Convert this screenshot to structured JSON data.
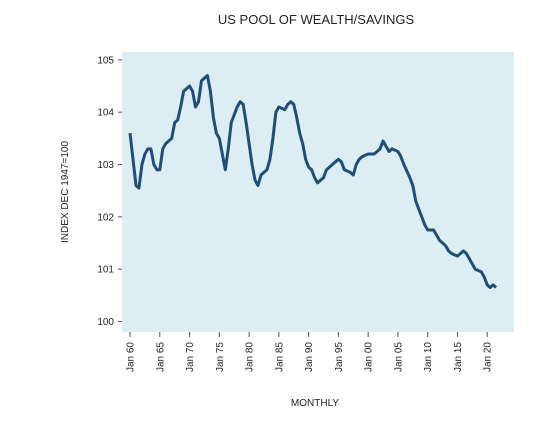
{
  "chart_data": {
    "type": "line",
    "title": "US POOL OF WEALTH/SAVINGS",
    "x_label": "MONTHLY",
    "y_label": "INDEX DEC 1947=100",
    "x": [
      1960.0,
      1960.5,
      1961.0,
      1961.5,
      1962.0,
      1962.5,
      1963.0,
      1963.5,
      1964.0,
      1964.5,
      1965.0,
      1965.5,
      1966.0,
      1967.0,
      1967.5,
      1968.0,
      1968.5,
      1969.0,
      1970.0,
      1970.5,
      1971.0,
      1971.5,
      1972.0,
      1973.0,
      1973.5,
      1974.0,
      1974.5,
      1975.0,
      1975.5,
      1976.0,
      1976.5,
      1977.0,
      1978.0,
      1978.5,
      1979.0,
      1979.5,
      1980.0,
      1980.5,
      1981.0,
      1981.5,
      1982.0,
      1983.0,
      1983.5,
      1984.0,
      1984.5,
      1985.0,
      1986.0,
      1986.5,
      1987.0,
      1987.5,
      1988.0,
      1988.5,
      1989.0,
      1989.5,
      1990.0,
      1990.5,
      1991.0,
      1991.5,
      1992.0,
      1992.5,
      1993.0,
      1994.0,
      1995.0,
      1995.5,
      1996.0,
      1997.0,
      1997.5,
      1998.0,
      1998.5,
      1999.0,
      2000.0,
      2001.0,
      2001.5,
      2002.0,
      2002.5,
      2003.0,
      2003.5,
      2004.0,
      2005.0,
      2005.5,
      2006.0,
      2007.0,
      2007.5,
      2008.0,
      2008.5,
      2009.0,
      2009.5,
      2010.0,
      2011.0,
      2011.5,
      2012.0,
      2013.0,
      2013.5,
      2014.0,
      2015.0,
      2015.5,
      2016.0,
      2016.5,
      2017.0,
      2017.5,
      2018.0,
      2019.0,
      2019.5,
      2020.0,
      2020.5,
      2021.0,
      2021.5
    ],
    "series": [
      {
        "color": "#1f4e79",
        "values": [
          103.6,
          103.1,
          102.6,
          102.55,
          103.0,
          103.2,
          103.3,
          103.3,
          103.0,
          102.9,
          102.9,
          103.3,
          103.4,
          103.5,
          103.8,
          103.85,
          104.1,
          104.4,
          104.5,
          104.4,
          104.1,
          104.2,
          104.6,
          104.7,
          104.4,
          103.9,
          103.6,
          103.5,
          103.2,
          102.9,
          103.3,
          103.8,
          104.1,
          104.2,
          104.15,
          103.8,
          103.4,
          103.0,
          102.7,
          102.6,
          102.8,
          102.9,
          103.1,
          103.5,
          104.0,
          104.1,
          104.05,
          104.15,
          104.2,
          104.15,
          103.9,
          103.6,
          103.4,
          103.1,
          102.95,
          102.9,
          102.75,
          102.65,
          102.7,
          102.75,
          102.9,
          103.0,
          103.1,
          103.05,
          102.9,
          102.85,
          102.8,
          103.0,
          103.1,
          103.15,
          103.2,
          103.2,
          103.25,
          103.3,
          103.45,
          103.35,
          103.25,
          103.3,
          103.25,
          103.15,
          103.0,
          102.75,
          102.6,
          102.3,
          102.15,
          102.0,
          101.85,
          101.75,
          101.75,
          101.65,
          101.55,
          101.45,
          101.35,
          101.3,
          101.25,
          101.3,
          101.35,
          101.3,
          101.2,
          101.1,
          101.0,
          100.95,
          100.85,
          100.7,
          100.65,
          100.7,
          100.65
        ]
      }
    ],
    "xlim": [
      1958.65,
      2024.5
    ],
    "xticks": [
      {
        "value": 1960,
        "label": "Jan 60"
      },
      {
        "value": 1965,
        "label": "Jan 65"
      },
      {
        "value": 1970,
        "label": "Jan 70"
      },
      {
        "value": 1975,
        "label": "Jan 75"
      },
      {
        "value": 1980,
        "label": "Jan 80"
      },
      {
        "value": 1985,
        "label": "Jan 85"
      },
      {
        "value": 1990,
        "label": "Jan 90"
      },
      {
        "value": 1995,
        "label": "Jan 95"
      },
      {
        "value": 2000,
        "label": "Jan 00"
      },
      {
        "value": 2005,
        "label": "Jan 05"
      },
      {
        "value": 2010,
        "label": "Jan 10"
      },
      {
        "value": 2015,
        "label": "Jan 15"
      },
      {
        "value": 2020,
        "label": "Jan 20"
      }
    ],
    "ylim": [
      99.8,
      105.15
    ],
    "yticks": [
      100,
      101,
      102,
      103,
      104,
      105
    ],
    "background": "#dcedf3"
  }
}
